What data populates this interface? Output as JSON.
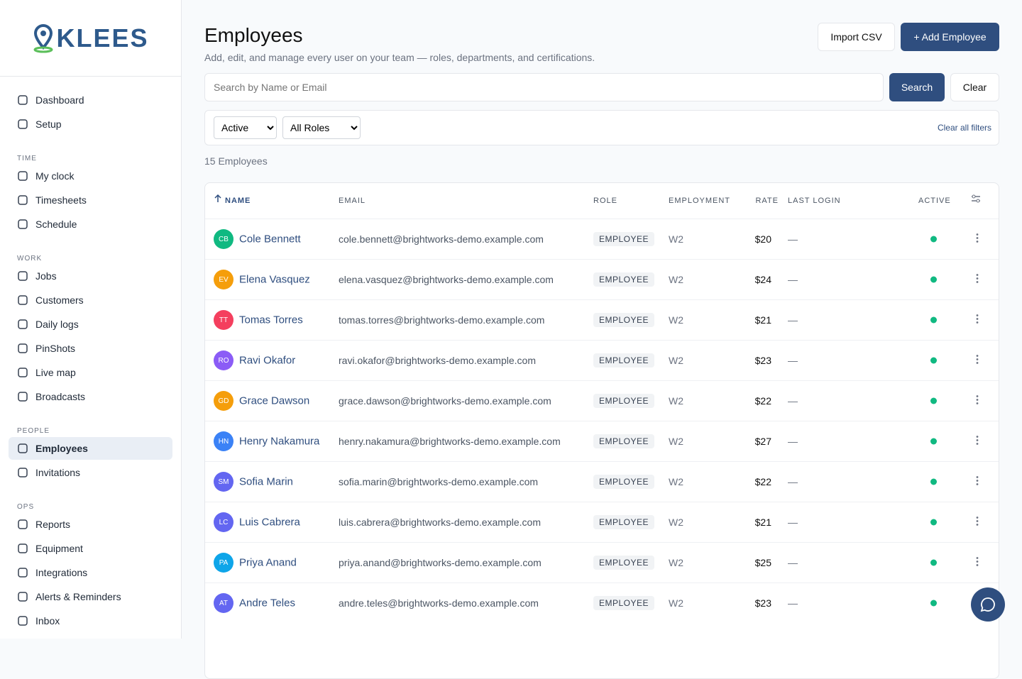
{
  "sidebar": {
    "logo": "KLEES",
    "active": "Employees",
    "top": [
      "Dashboard",
      "Setup"
    ],
    "sections": [
      {
        "heading": "TIME",
        "items": [
          "My clock",
          "Timesheets",
          "Schedule"
        ]
      },
      {
        "heading": "WORK",
        "items": [
          "Jobs",
          "Customers",
          "Daily logs",
          "PinShots",
          "Live map",
          "Broadcasts"
        ]
      },
      {
        "heading": "PEOPLE",
        "items": [
          "Employees",
          "Invitations"
        ]
      },
      {
        "heading": "OPS",
        "items": [
          "Reports",
          "Equipment",
          "Integrations",
          "Alerts & Reminders",
          "Inbox"
        ]
      }
    ]
  },
  "header": {
    "title": "Employees",
    "subtitle": "Add, edit, and manage every user on your team — roles, departments, and certifications.",
    "import_button": "Import CSV",
    "add_button": "+ Add Employee"
  },
  "search": {
    "placeholder": "Search by Name or Email",
    "search_button": "Search",
    "clear_button": "Clear"
  },
  "filters": {
    "status": "Active",
    "role": "All Roles",
    "clear_all": "Clear all filters"
  },
  "count": "15 Employees",
  "table": {
    "columns": [
      "NAME",
      "EMAIL",
      "ROLE",
      "EMPLOYMENT",
      "RATE",
      "LAST LOGIN",
      "ACTIVE"
    ],
    "rows": [
      {
        "initials": "CB",
        "color": "#10b981",
        "name": "Cole Bennett",
        "email": "cole.bennett@brightworks-demo.example.com",
        "role": "EMPLOYEE",
        "employment": "W2",
        "rate": "$20",
        "last_login": "—",
        "active": true
      },
      {
        "initials": "EV",
        "color": "#f59e0b",
        "name": "Elena Vasquez",
        "email": "elena.vasquez@brightworks-demo.example.com",
        "role": "EMPLOYEE",
        "employment": "W2",
        "rate": "$24",
        "last_login": "—",
        "active": true
      },
      {
        "initials": "TT",
        "color": "#f43f5e",
        "name": "Tomas Torres",
        "email": "tomas.torres@brightworks-demo.example.com",
        "role": "EMPLOYEE",
        "employment": "W2",
        "rate": "$21",
        "last_login": "—",
        "active": true
      },
      {
        "initials": "RO",
        "color": "#8b5cf6",
        "name": "Ravi Okafor",
        "email": "ravi.okafor@brightworks-demo.example.com",
        "role": "EMPLOYEE",
        "employment": "W2",
        "rate": "$23",
        "last_login": "—",
        "active": true
      },
      {
        "initials": "GD",
        "color": "#f59e0b",
        "name": "Grace Dawson",
        "email": "grace.dawson@brightworks-demo.example.com",
        "role": "EMPLOYEE",
        "employment": "W2",
        "rate": "$22",
        "last_login": "—",
        "active": true
      },
      {
        "initials": "HN",
        "color": "#3b82f6",
        "name": "Henry Nakamura",
        "email": "henry.nakamura@brightworks-demo.example.com",
        "role": "EMPLOYEE",
        "employment": "W2",
        "rate": "$27",
        "last_login": "—",
        "active": true
      },
      {
        "initials": "SM",
        "color": "#6366f1",
        "name": "Sofia Marin",
        "email": "sofia.marin@brightworks-demo.example.com",
        "role": "EMPLOYEE",
        "employment": "W2",
        "rate": "$22",
        "last_login": "—",
        "active": true
      },
      {
        "initials": "LC",
        "color": "#6366f1",
        "name": "Luis Cabrera",
        "email": "luis.cabrera@brightworks-demo.example.com",
        "role": "EMPLOYEE",
        "employment": "W2",
        "rate": "$21",
        "last_login": "—",
        "active": true
      },
      {
        "initials": "PA",
        "color": "#0ea5e9",
        "name": "Priya Anand",
        "email": "priya.anand@brightworks-demo.example.com",
        "role": "EMPLOYEE",
        "employment": "W2",
        "rate": "$25",
        "last_login": "—",
        "active": true
      },
      {
        "initials": "AT",
        "color": "#6366f1",
        "name": "Andre Teles",
        "email": "andre.teles@brightworks-demo.example.com",
        "role": "EMPLOYEE",
        "employment": "W2",
        "rate": "$23",
        "last_login": "—",
        "active": true
      }
    ]
  }
}
